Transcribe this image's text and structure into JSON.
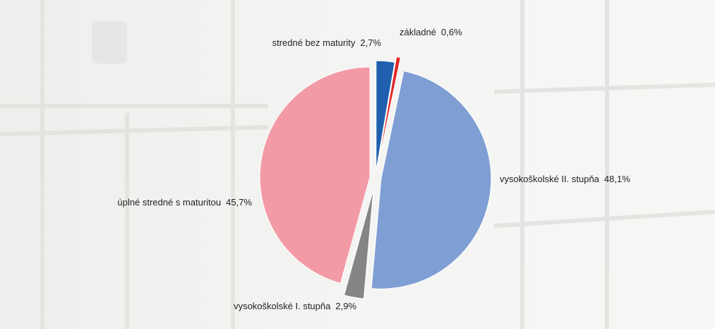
{
  "chart_data": {
    "type": "pie",
    "categories": [
      "stredné bez maturity",
      "základné",
      "vysokoškolské II. stupňa",
      "vysokoškolské I. stupňa",
      "úplné stredné s maturitou"
    ],
    "values": [
      2.7,
      0.6,
      48.1,
      2.9,
      45.7
    ],
    "value_labels": [
      "2,7%",
      "0,6%",
      "48,1%",
      "2,9%",
      "45,7%"
    ],
    "colors": [
      "#1f5fae",
      "#e02626",
      "#7f9fd4",
      "#858585",
      "#f29aa5"
    ]
  }
}
